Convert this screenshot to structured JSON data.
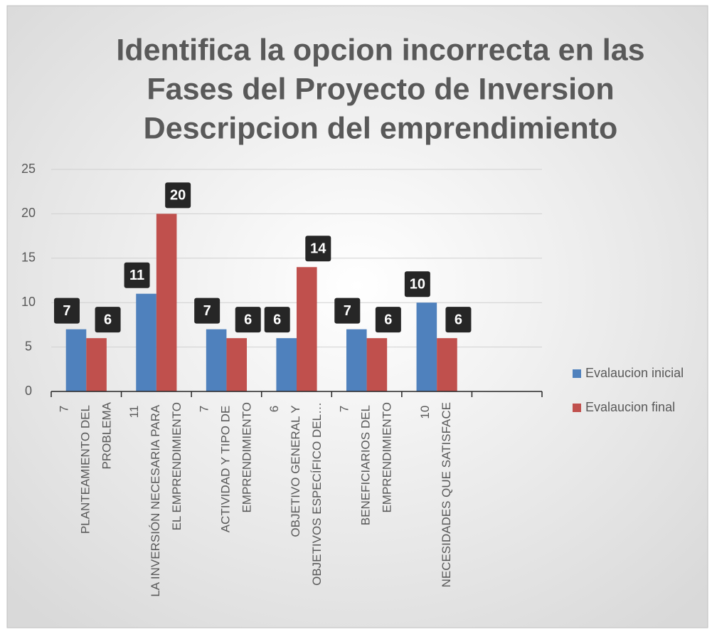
{
  "chart_data": {
    "type": "bar",
    "title": [
      "Identifica la opcion incorrecta en las",
      "Fases del Proyecto de Inversion",
      "Descripcion del emprendimiento"
    ],
    "categories": [
      "7\nPLANTEAMIENTO DEL\nPROBLEMA",
      "11\nLA INVERSIÓN NECESARIA PARA\nEL EMPRENDIMIENTO",
      "7\nACTIVIDAD Y TIPO DE\nEMPRENDIMIENTO",
      "6\nOBJETIVO GENERAL Y\nOBJETIVOS ESPECÍFICO DEL…",
      "7\nBENEFICIARIOS DEL\nEMPRENDIMIENTO",
      "10\nNECESIDADES QUE SATISFACE",
      null
    ],
    "series": [
      {
        "name": "Evalaucion inicial",
        "color": "#4f81bd",
        "values": [
          7,
          11,
          7,
          6,
          7,
          10,
          null
        ]
      },
      {
        "name": "Evalaucion final",
        "color": "#c0504d",
        "values": [
          6,
          20,
          6,
          14,
          6,
          6,
          null
        ]
      }
    ],
    "ylim": [
      0,
      25
    ],
    "yticks": [
      0,
      5,
      10,
      15,
      20,
      25
    ],
    "grid": true,
    "legend": "right"
  }
}
